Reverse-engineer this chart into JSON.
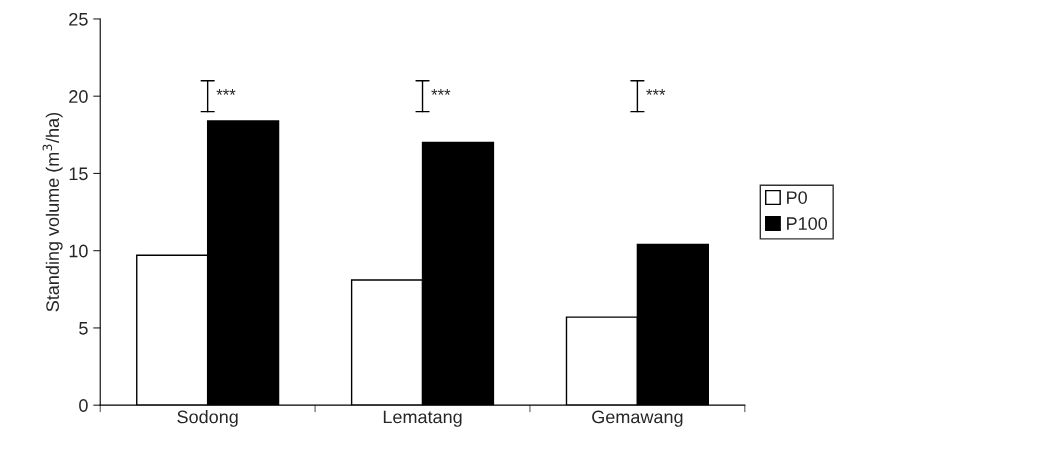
{
  "chart_data": {
    "type": "bar",
    "categories": [
      "Sodong",
      "Lematang",
      "Gemawang"
    ],
    "ylabel": "Standing volume (m$^{3}$/ha)",
    "series": [
      {
        "name": "P0",
        "color": "#ffffff",
        "values": [
          9.7,
          8.1,
          5.7
        ]
      },
      {
        "name": "P100",
        "color": "#000000",
        "values": [
          18.4,
          17.0,
          10.4
        ]
      }
    ],
    "ylim": [
      0,
      25
    ],
    "yticks": [
      0,
      5,
      10,
      15,
      20,
      25
    ],
    "annotations": [
      "***",
      "***",
      "***"
    ],
    "legend": "right",
    "grid": false
  }
}
